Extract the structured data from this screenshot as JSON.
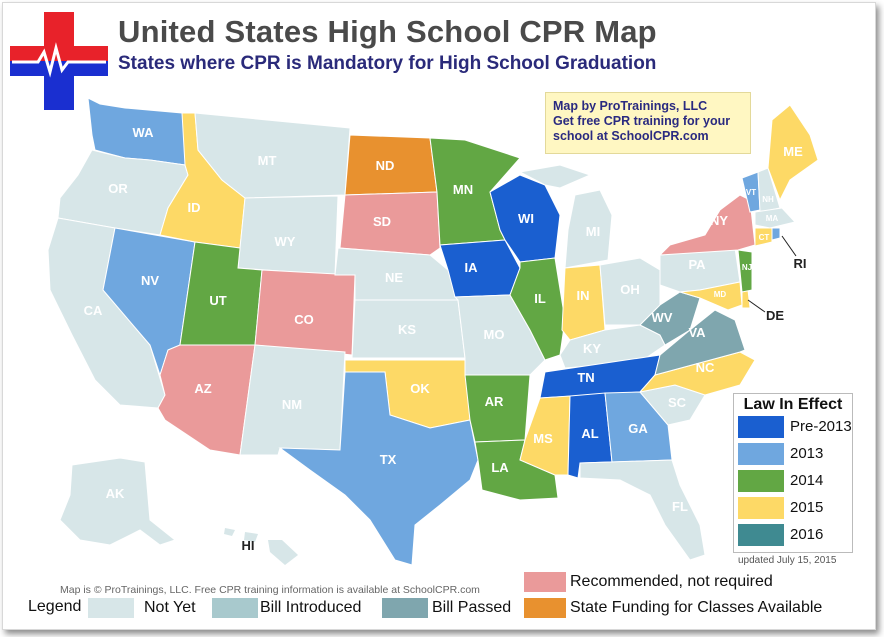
{
  "title": "United States High School CPR Map",
  "subtitle": "States where CPR is Mandatory for High School Graduation",
  "credit": {
    "line1": "Map by ProTrainings, LLC",
    "line2": "Get free CPR training for your",
    "line3": "school at SchoolCPR.com"
  },
  "colors": {
    "pre2013": "#1a5fd0",
    "y2013": "#6fa7df",
    "y2014": "#62a744",
    "y2015": "#fdd966",
    "y2016": "#3f8a91",
    "recommended": "#ea9a9a",
    "not_yet": "#d7e6e8",
    "bill_introduced": "#a8c9cd",
    "bill_passed": "#7fa6ae",
    "funding": "#e8912f"
  },
  "law_in_effect": {
    "title": "Law In Effect",
    "items": [
      "Pre-2013",
      "2013",
      "2014",
      "2015",
      "2016"
    ]
  },
  "updated": "updated July 15, 2015",
  "copyright": "Map is © ProTrainings, LLC. Free CPR training information is available at SchoolCPR.com",
  "legend": {
    "label": "Legend",
    "not_yet": "Not Yet",
    "bill_introduced": "Bill Introduced",
    "bill_passed": "Bill Passed",
    "recommended": "Recommended, not required",
    "funding": "State Funding for Classes Available"
  },
  "states": {
    "WA": "WA",
    "OR": "OR",
    "CA": "CA",
    "NV": "NV",
    "ID": "ID",
    "MT": "MT",
    "WY": "WY",
    "UT": "UT",
    "CO": "CO",
    "AZ": "AZ",
    "NM": "NM",
    "ND": "ND",
    "SD": "SD",
    "NE": "NE",
    "KS": "KS",
    "OK": "OK",
    "TX": "TX",
    "MN": "MN",
    "IA": "IA",
    "MO": "MO",
    "AR": "AR",
    "LA": "LA",
    "WI": "WI",
    "IL": "IL",
    "MI": "MI",
    "IN": "IN",
    "OH": "OH",
    "KY": "KY",
    "TN": "TN",
    "MS": "MS",
    "AL": "AL",
    "GA": "GA",
    "FL": "FL",
    "SC": "SC",
    "NC": "NC",
    "VA": "VA",
    "WV": "WV",
    "PA": "PA",
    "NY": "NY",
    "ME": "ME",
    "VT": "VT",
    "NH": "NH",
    "MA": "MA",
    "CT": "CT",
    "RI": "RI",
    "NJ": "NJ",
    "DE": "DE",
    "MD": "MD",
    "AK": "AK",
    "HI": "HI"
  }
}
